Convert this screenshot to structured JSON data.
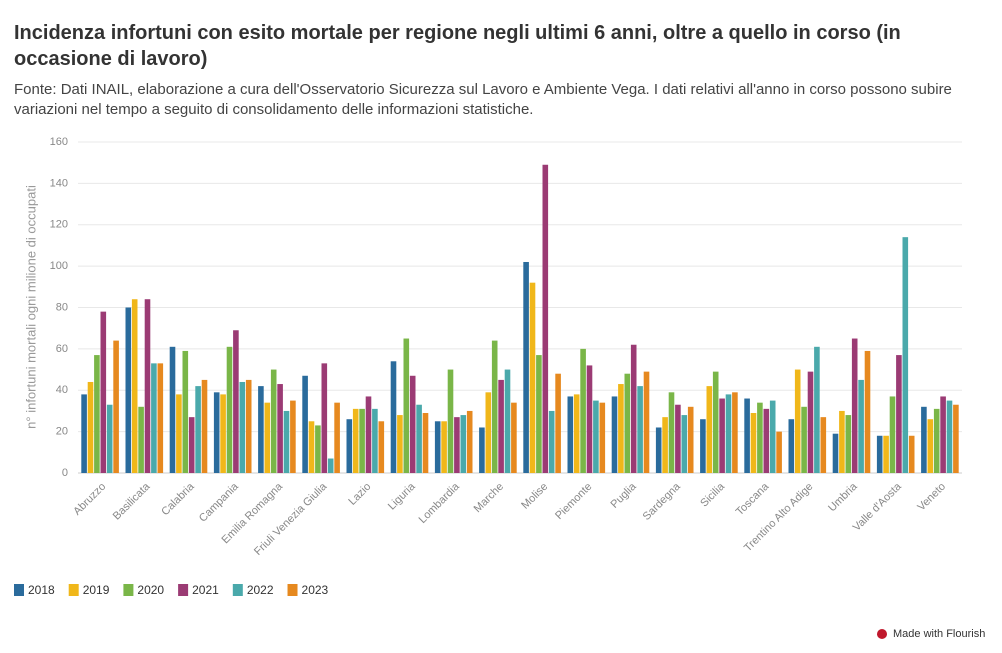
{
  "chart_data": {
    "type": "bar",
    "title": "Incidenza infortuni con esito mortale per regione negli ultimi 6 anni, oltre a quello in corso (in occasione di lavoro)",
    "subtitle": "Fonte: Dati INAIL, elaborazione a cura dell'Osservatorio Sicurezza sul Lavoro e Ambiente Vega. I dati relativi all'anno in corso possono subire variazioni nel tempo a seguito di consolidamento delle informazioni statistiche.",
    "y_label": "n° infortuni mortali ogni milione di occupati",
    "footer": "Made with Flourish",
    "categories": [
      "Abruzzo",
      "Basilicata",
      "Calabria",
      "Campania",
      "Emilia Romagna",
      "Friuli Venezia Giulia",
      "Lazio",
      "Liguria",
      "Lombardia",
      "Marche",
      "Molise",
      "Piemonte",
      "Puglia",
      "Sardegna",
      "Sicilia",
      "Toscana",
      "Trentino Alto Adige",
      "Umbria",
      "Valle d'Aosta",
      "Veneto"
    ],
    "series": [
      {
        "name": "2018",
        "color": "#2a6b9c",
        "values": [
          38,
          80,
          61,
          39,
          42,
          47,
          26,
          54,
          25,
          22,
          102,
          37,
          37,
          22,
          26,
          36,
          26,
          19,
          18,
          32
        ]
      },
      {
        "name": "2019",
        "color": "#f0b71a",
        "values": [
          44,
          84,
          38,
          38,
          34,
          25,
          31,
          28,
          25,
          39,
          92,
          38,
          43,
          27,
          42,
          29,
          50,
          30,
          18,
          26
        ]
      },
      {
        "name": "2020",
        "color": "#7ab648",
        "values": [
          57,
          32,
          59,
          61,
          50,
          23,
          31,
          65,
          50,
          64,
          57,
          60,
          48,
          39,
          49,
          34,
          32,
          28,
          37,
          31
        ]
      },
      {
        "name": "2021",
        "color": "#9b3b74",
        "values": [
          78,
          84,
          27,
          69,
          43,
          53,
          37,
          47,
          27,
          45,
          149,
          52,
          62,
          33,
          36,
          31,
          49,
          65,
          57,
          37
        ]
      },
      {
        "name": "2022",
        "color": "#4aa9ab",
        "values": [
          33,
          53,
          42,
          44,
          30,
          7,
          31,
          33,
          28,
          50,
          30,
          35,
          42,
          28,
          38,
          35,
          61,
          45,
          114,
          35
        ]
      },
      {
        "name": "2023",
        "color": "#e6891f",
        "values": [
          64,
          53,
          45,
          45,
          35,
          34,
          25,
          29,
          30,
          34,
          48,
          34,
          49,
          32,
          39,
          20,
          27,
          59,
          18,
          33
        ]
      }
    ],
    "ylim": [
      0,
      160
    ],
    "yticks": [
      0,
      20,
      40,
      60,
      80,
      100,
      120,
      140,
      160
    ],
    "grid": true,
    "legend": "bottom"
  }
}
